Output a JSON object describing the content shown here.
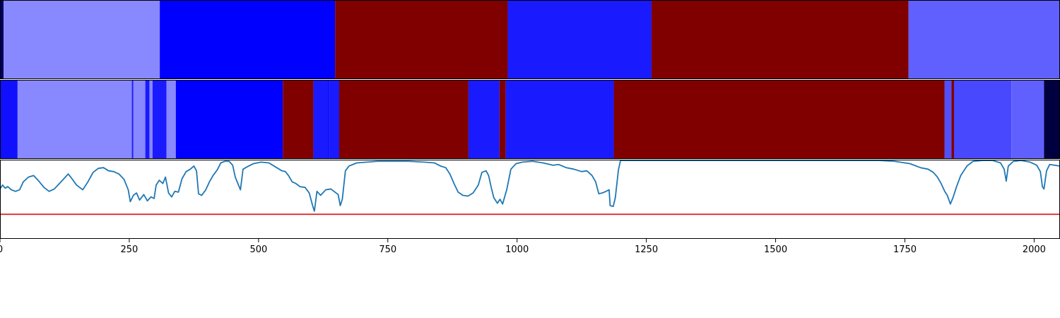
{
  "chart_data": {
    "type": "area",
    "xlim": [
      0,
      2050
    ],
    "x_ticks": [
      0,
      250,
      500,
      750,
      1000,
      1250,
      1500,
      1750,
      2000
    ],
    "x_tick_labels": [
      "0",
      "250",
      "500",
      "750",
      "1000",
      "1250",
      "1500",
      "1750",
      "2000"
    ],
    "grid": false,
    "segments_top": [
      {
        "start": 0,
        "end": 7,
        "color": "#000064"
      },
      {
        "start": 7,
        "end": 309,
        "color": "#8888ff"
      },
      {
        "start": 309,
        "end": 648,
        "color": "#0000ff"
      },
      {
        "start": 648,
        "end": 982,
        "color": "#800000"
      },
      {
        "start": 982,
        "end": 1260,
        "color": "#1a1aff"
      },
      {
        "start": 1260,
        "end": 1757,
        "color": "#800000"
      },
      {
        "start": 1757,
        "end": 2050,
        "color": "#6060ff"
      }
    ],
    "segments_mid": [
      {
        "start": 0,
        "end": 34,
        "color": "#1010ff"
      },
      {
        "start": 34,
        "end": 255,
        "color": "#8888ff"
      },
      {
        "start": 255,
        "end": 258,
        "color": "#1a1aff"
      },
      {
        "start": 258,
        "end": 281,
        "color": "#8888ff"
      },
      {
        "start": 281,
        "end": 289,
        "color": "#1a1aff"
      },
      {
        "start": 289,
        "end": 295,
        "color": "#8888ff"
      },
      {
        "start": 295,
        "end": 322,
        "color": "#1a1aff"
      },
      {
        "start": 322,
        "end": 340,
        "color": "#8888ff"
      },
      {
        "start": 340,
        "end": 547,
        "color": "#0000ff"
      },
      {
        "start": 547,
        "end": 606,
        "color": "#800000"
      },
      {
        "start": 606,
        "end": 633,
        "color": "#1a1aff"
      },
      {
        "start": 633,
        "end": 636,
        "color": "#0000ff"
      },
      {
        "start": 636,
        "end": 656,
        "color": "#1a1aff"
      },
      {
        "start": 656,
        "end": 906,
        "color": "#800000"
      },
      {
        "start": 906,
        "end": 966,
        "color": "#1a1aff"
      },
      {
        "start": 966,
        "end": 978,
        "color": "#800000"
      },
      {
        "start": 978,
        "end": 1187,
        "color": "#1a1aff"
      },
      {
        "start": 1187,
        "end": 1827,
        "color": "#800000"
      },
      {
        "start": 1827,
        "end": 1840,
        "color": "#5050ff"
      },
      {
        "start": 1840,
        "end": 1845,
        "color": "#800000"
      },
      {
        "start": 1845,
        "end": 1956,
        "color": "#4848ff"
      },
      {
        "start": 1956,
        "end": 2019,
        "color": "#6060ff"
      },
      {
        "start": 2019,
        "end": 2050,
        "color": "#000040"
      }
    ],
    "line_ylim": [
      0,
      1
    ],
    "threshold": {
      "value": 0.31,
      "color": "#e41a1c"
    },
    "line_color": "#1f77b4",
    "line_points": [
      [
        0,
        0.63
      ],
      [
        5,
        0.68
      ],
      [
        10,
        0.64
      ],
      [
        15,
        0.66
      ],
      [
        22,
        0.62
      ],
      [
        30,
        0.6
      ],
      [
        38,
        0.62
      ],
      [
        45,
        0.72
      ],
      [
        55,
        0.78
      ],
      [
        65,
        0.8
      ],
      [
        75,
        0.73
      ],
      [
        85,
        0.65
      ],
      [
        95,
        0.6
      ],
      [
        105,
        0.63
      ],
      [
        115,
        0.7
      ],
      [
        125,
        0.77
      ],
      [
        132,
        0.82
      ],
      [
        138,
        0.77
      ],
      [
        148,
        0.68
      ],
      [
        160,
        0.62
      ],
      [
        170,
        0.72
      ],
      [
        180,
        0.84
      ],
      [
        190,
        0.89
      ],
      [
        200,
        0.9
      ],
      [
        210,
        0.86
      ],
      [
        220,
        0.85
      ],
      [
        230,
        0.82
      ],
      [
        240,
        0.75
      ],
      [
        248,
        0.62
      ],
      [
        252,
        0.47
      ],
      [
        258,
        0.55
      ],
      [
        264,
        0.58
      ],
      [
        270,
        0.49
      ],
      [
        278,
        0.56
      ],
      [
        285,
        0.48
      ],
      [
        292,
        0.53
      ],
      [
        298,
        0.51
      ],
      [
        302,
        0.68
      ],
      [
        308,
        0.74
      ],
      [
        315,
        0.7
      ],
      [
        320,
        0.78
      ],
      [
        326,
        0.58
      ],
      [
        332,
        0.53
      ],
      [
        338,
        0.6
      ],
      [
        345,
        0.59
      ],
      [
        352,
        0.76
      ],
      [
        360,
        0.85
      ],
      [
        368,
        0.88
      ],
      [
        375,
        0.92
      ],
      [
        380,
        0.86
      ],
      [
        384,
        0.57
      ],
      [
        390,
        0.55
      ],
      [
        398,
        0.62
      ],
      [
        405,
        0.72
      ],
      [
        412,
        0.8
      ],
      [
        420,
        0.87
      ],
      [
        427,
        0.96
      ],
      [
        435,
        0.98
      ],
      [
        443,
        0.98
      ],
      [
        450,
        0.93
      ],
      [
        455,
        0.78
      ],
      [
        460,
        0.7
      ],
      [
        465,
        0.62
      ],
      [
        470,
        0.88
      ],
      [
        478,
        0.91
      ],
      [
        490,
        0.95
      ],
      [
        505,
        0.97
      ],
      [
        520,
        0.96
      ],
      [
        535,
        0.9
      ],
      [
        545,
        0.86
      ],
      [
        552,
        0.85
      ],
      [
        558,
        0.8
      ],
      [
        565,
        0.72
      ],
      [
        572,
        0.7
      ],
      [
        580,
        0.66
      ],
      [
        590,
        0.65
      ],
      [
        598,
        0.58
      ],
      [
        605,
        0.41
      ],
      [
        608,
        0.35
      ],
      [
        613,
        0.6
      ],
      [
        620,
        0.55
      ],
      [
        630,
        0.62
      ],
      [
        640,
        0.63
      ],
      [
        648,
        0.59
      ],
      [
        654,
        0.56
      ],
      [
        658,
        0.42
      ],
      [
        662,
        0.5
      ],
      [
        668,
        0.86
      ],
      [
        675,
        0.92
      ],
      [
        690,
        0.96
      ],
      [
        710,
        0.97
      ],
      [
        730,
        0.98
      ],
      [
        760,
        0.98
      ],
      [
        790,
        0.98
      ],
      [
        820,
        0.97
      ],
      [
        840,
        0.96
      ],
      [
        852,
        0.92
      ],
      [
        862,
        0.9
      ],
      [
        870,
        0.82
      ],
      [
        878,
        0.7
      ],
      [
        886,
        0.59
      ],
      [
        895,
        0.55
      ],
      [
        905,
        0.54
      ],
      [
        915,
        0.58
      ],
      [
        925,
        0.68
      ],
      [
        932,
        0.84
      ],
      [
        940,
        0.86
      ],
      [
        945,
        0.8
      ],
      [
        950,
        0.65
      ],
      [
        955,
        0.52
      ],
      [
        962,
        0.45
      ],
      [
        967,
        0.5
      ],
      [
        972,
        0.44
      ],
      [
        980,
        0.62
      ],
      [
        988,
        0.88
      ],
      [
        998,
        0.95
      ],
      [
        1010,
        0.97
      ],
      [
        1030,
        0.98
      ],
      [
        1050,
        0.96
      ],
      [
        1070,
        0.93
      ],
      [
        1080,
        0.94
      ],
      [
        1095,
        0.9
      ],
      [
        1110,
        0.88
      ],
      [
        1125,
        0.85
      ],
      [
        1135,
        0.86
      ],
      [
        1145,
        0.8
      ],
      [
        1152,
        0.72
      ],
      [
        1158,
        0.57
      ],
      [
        1165,
        0.58
      ],
      [
        1172,
        0.6
      ],
      [
        1178,
        0.62
      ],
      [
        1180,
        0.42
      ],
      [
        1186,
        0.41
      ],
      [
        1190,
        0.52
      ],
      [
        1196,
        0.87
      ],
      [
        1200,
        0.99
      ],
      [
        1230,
        0.99
      ],
      [
        1260,
        0.99
      ],
      [
        1300,
        0.99
      ],
      [
        1350,
        0.99
      ],
      [
        1400,
        0.99
      ],
      [
        1450,
        0.99
      ],
      [
        1500,
        0.99
      ],
      [
        1550,
        0.99
      ],
      [
        1600,
        0.99
      ],
      [
        1650,
        0.99
      ],
      [
        1700,
        0.99
      ],
      [
        1730,
        0.98
      ],
      [
        1760,
        0.95
      ],
      [
        1780,
        0.9
      ],
      [
        1795,
        0.88
      ],
      [
        1805,
        0.84
      ],
      [
        1813,
        0.78
      ],
      [
        1820,
        0.7
      ],
      [
        1827,
        0.6
      ],
      [
        1832,
        0.55
      ],
      [
        1838,
        0.44
      ],
      [
        1843,
        0.52
      ],
      [
        1850,
        0.66
      ],
      [
        1858,
        0.8
      ],
      [
        1870,
        0.92
      ],
      [
        1882,
        0.98
      ],
      [
        1900,
        0.99
      ],
      [
        1920,
        0.99
      ],
      [
        1935,
        0.96
      ],
      [
        1942,
        0.88
      ],
      [
        1946,
        0.73
      ],
      [
        1950,
        0.92
      ],
      [
        1960,
        0.98
      ],
      [
        1975,
        0.99
      ],
      [
        1992,
        0.97
      ],
      [
        2005,
        0.93
      ],
      [
        2012,
        0.85
      ],
      [
        2016,
        0.66
      ],
      [
        2019,
        0.63
      ],
      [
        2024,
        0.86
      ],
      [
        2030,
        0.94
      ],
      [
        2040,
        0.93
      ],
      [
        2050,
        0.92
      ]
    ]
  }
}
